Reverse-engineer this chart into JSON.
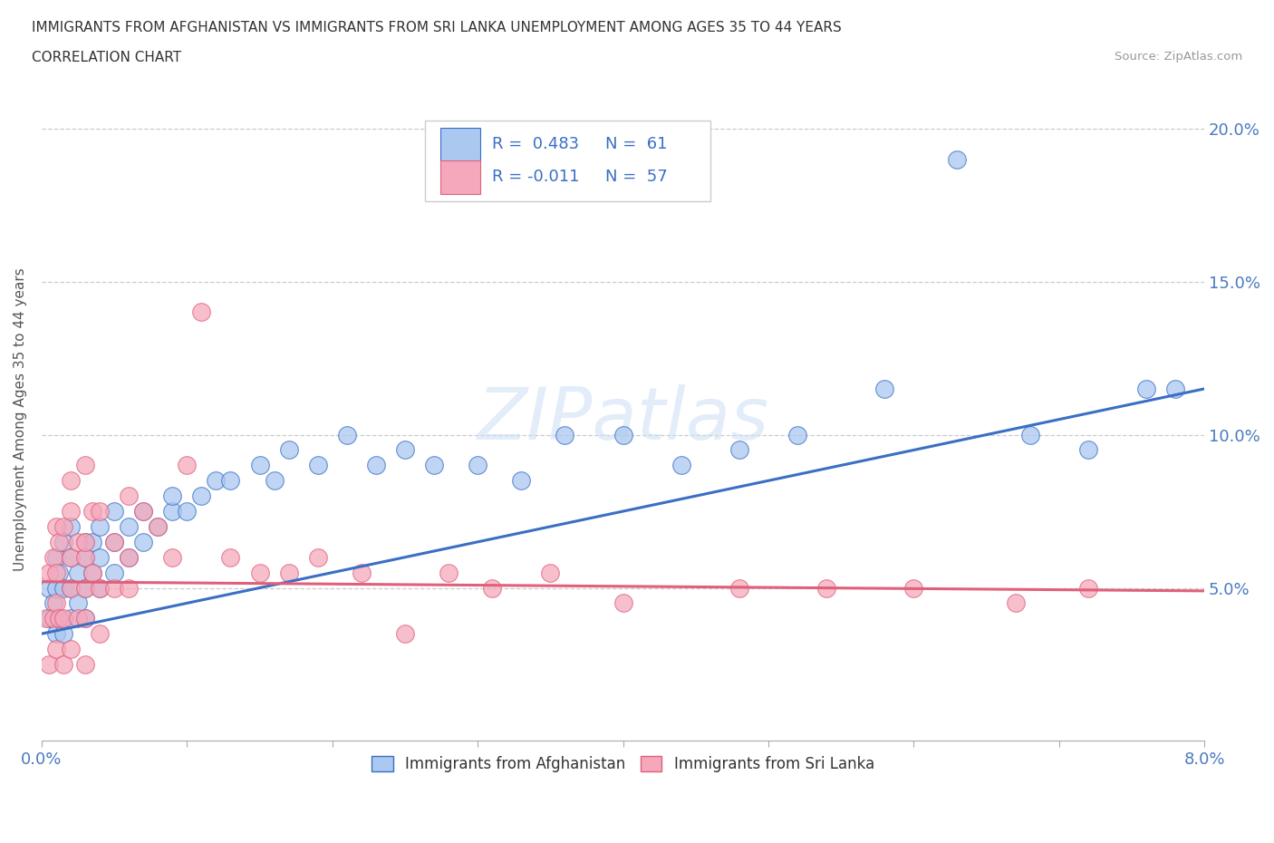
{
  "title_line1": "IMMIGRANTS FROM AFGHANISTAN VS IMMIGRANTS FROM SRI LANKA UNEMPLOYMENT AMONG AGES 35 TO 44 YEARS",
  "title_line2": "CORRELATION CHART",
  "source_text": "Source: ZipAtlas.com",
  "ylabel": "Unemployment Among Ages 35 to 44 years",
  "xlim": [
    0.0,
    0.08
  ],
  "ylim": [
    0.0,
    0.21
  ],
  "xticks": [
    0.0,
    0.01,
    0.02,
    0.03,
    0.04,
    0.05,
    0.06,
    0.07,
    0.08
  ],
  "xticklabels": [
    "0.0%",
    "",
    "",
    "",
    "",
    "",
    "",
    "",
    "8.0%"
  ],
  "yticks": [
    0.0,
    0.05,
    0.1,
    0.15,
    0.2
  ],
  "yticklabels": [
    "",
    "5.0%",
    "10.0%",
    "15.0%",
    "20.0%"
  ],
  "afghanistan_color": "#aac8f0",
  "srilanka_color": "#f5a8bc",
  "afghanistan_line_color": "#3a6fc4",
  "srilanka_line_color": "#e0607a",
  "watermark_text": "ZIPatlas",
  "afghanistan_x": [
    0.0005,
    0.0005,
    0.0008,
    0.001,
    0.001,
    0.001,
    0.0012,
    0.0012,
    0.0015,
    0.0015,
    0.0015,
    0.002,
    0.002,
    0.002,
    0.002,
    0.0025,
    0.0025,
    0.003,
    0.003,
    0.003,
    0.003,
    0.0035,
    0.0035,
    0.004,
    0.004,
    0.004,
    0.005,
    0.005,
    0.005,
    0.006,
    0.006,
    0.007,
    0.007,
    0.008,
    0.009,
    0.009,
    0.01,
    0.011,
    0.012,
    0.013,
    0.015,
    0.016,
    0.017,
    0.019,
    0.021,
    0.023,
    0.025,
    0.027,
    0.03,
    0.033,
    0.036,
    0.04,
    0.044,
    0.048,
    0.052,
    0.058,
    0.063,
    0.068,
    0.072,
    0.076,
    0.078
  ],
  "afghanistan_y": [
    0.04,
    0.05,
    0.045,
    0.035,
    0.05,
    0.06,
    0.04,
    0.055,
    0.035,
    0.05,
    0.065,
    0.04,
    0.05,
    0.06,
    0.07,
    0.045,
    0.055,
    0.04,
    0.05,
    0.06,
    0.065,
    0.055,
    0.065,
    0.05,
    0.06,
    0.07,
    0.055,
    0.065,
    0.075,
    0.06,
    0.07,
    0.065,
    0.075,
    0.07,
    0.075,
    0.08,
    0.075,
    0.08,
    0.085,
    0.085,
    0.09,
    0.085,
    0.095,
    0.09,
    0.1,
    0.09,
    0.095,
    0.09,
    0.09,
    0.085,
    0.1,
    0.1,
    0.09,
    0.095,
    0.1,
    0.115,
    0.19,
    0.1,
    0.095,
    0.115,
    0.115
  ],
  "srilanka_x": [
    0.0003,
    0.0005,
    0.0005,
    0.0008,
    0.0008,
    0.001,
    0.001,
    0.001,
    0.001,
    0.0012,
    0.0012,
    0.0015,
    0.0015,
    0.0015,
    0.002,
    0.002,
    0.002,
    0.002,
    0.002,
    0.0025,
    0.0025,
    0.003,
    0.003,
    0.003,
    0.003,
    0.003,
    0.003,
    0.0035,
    0.0035,
    0.004,
    0.004,
    0.004,
    0.005,
    0.005,
    0.006,
    0.006,
    0.006,
    0.007,
    0.008,
    0.009,
    0.01,
    0.011,
    0.013,
    0.015,
    0.017,
    0.019,
    0.022,
    0.025,
    0.028,
    0.031,
    0.035,
    0.04,
    0.048,
    0.054,
    0.06,
    0.067,
    0.072
  ],
  "srilanka_y": [
    0.04,
    0.025,
    0.055,
    0.04,
    0.06,
    0.03,
    0.045,
    0.055,
    0.07,
    0.04,
    0.065,
    0.025,
    0.04,
    0.07,
    0.03,
    0.05,
    0.06,
    0.075,
    0.085,
    0.04,
    0.065,
    0.025,
    0.04,
    0.05,
    0.06,
    0.065,
    0.09,
    0.055,
    0.075,
    0.035,
    0.05,
    0.075,
    0.05,
    0.065,
    0.05,
    0.06,
    0.08,
    0.075,
    0.07,
    0.06,
    0.09,
    0.14,
    0.06,
    0.055,
    0.055,
    0.06,
    0.055,
    0.035,
    0.055,
    0.05,
    0.055,
    0.045,
    0.05,
    0.05,
    0.05,
    0.045,
    0.05
  ],
  "afg_trend_x0": 0.0,
  "afg_trend_y0": 0.035,
  "afg_trend_x1": 0.08,
  "afg_trend_y1": 0.115,
  "slk_trend_x0": 0.0,
  "slk_trend_y0": 0.052,
  "slk_trend_x1": 0.08,
  "slk_trend_y1": 0.049
}
